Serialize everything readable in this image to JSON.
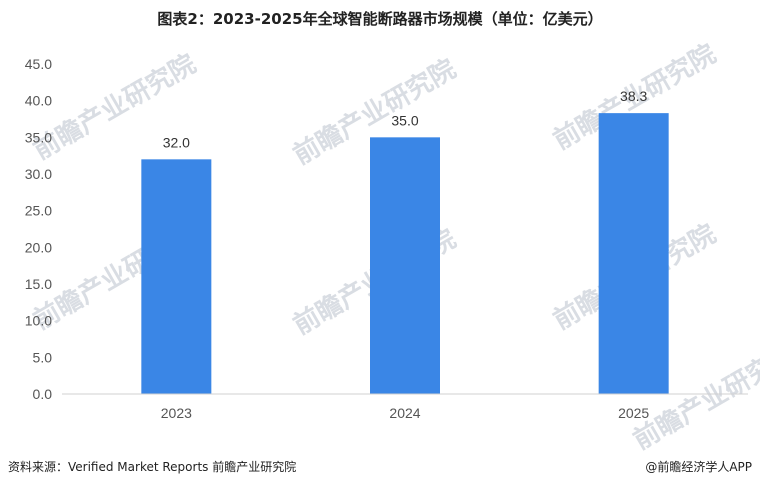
{
  "chart_data": {
    "type": "bar",
    "title": "图表2：2023-2025年全球智能断路器市场规模（单位：亿美元）",
    "categories": [
      "2023",
      "2024",
      "2025"
    ],
    "values": [
      32.0,
      35.0,
      38.3
    ],
    "value_labels": [
      "32.0",
      "35.0",
      "38.3"
    ],
    "y_ticks": [
      "0.0",
      "5.0",
      "10.0",
      "15.0",
      "20.0",
      "25.0",
      "30.0",
      "35.0",
      "40.0",
      "45.0"
    ],
    "ylim": [
      0,
      45
    ],
    "grid": false,
    "legend": "none",
    "bar_color": "#3a86e6"
  },
  "footer": {
    "source": "资料来源：Verified Market Reports 前瞻产业研究院",
    "credit": "@前瞻经济学人APP"
  },
  "watermark": {
    "text": "前瞻产业研究院"
  }
}
